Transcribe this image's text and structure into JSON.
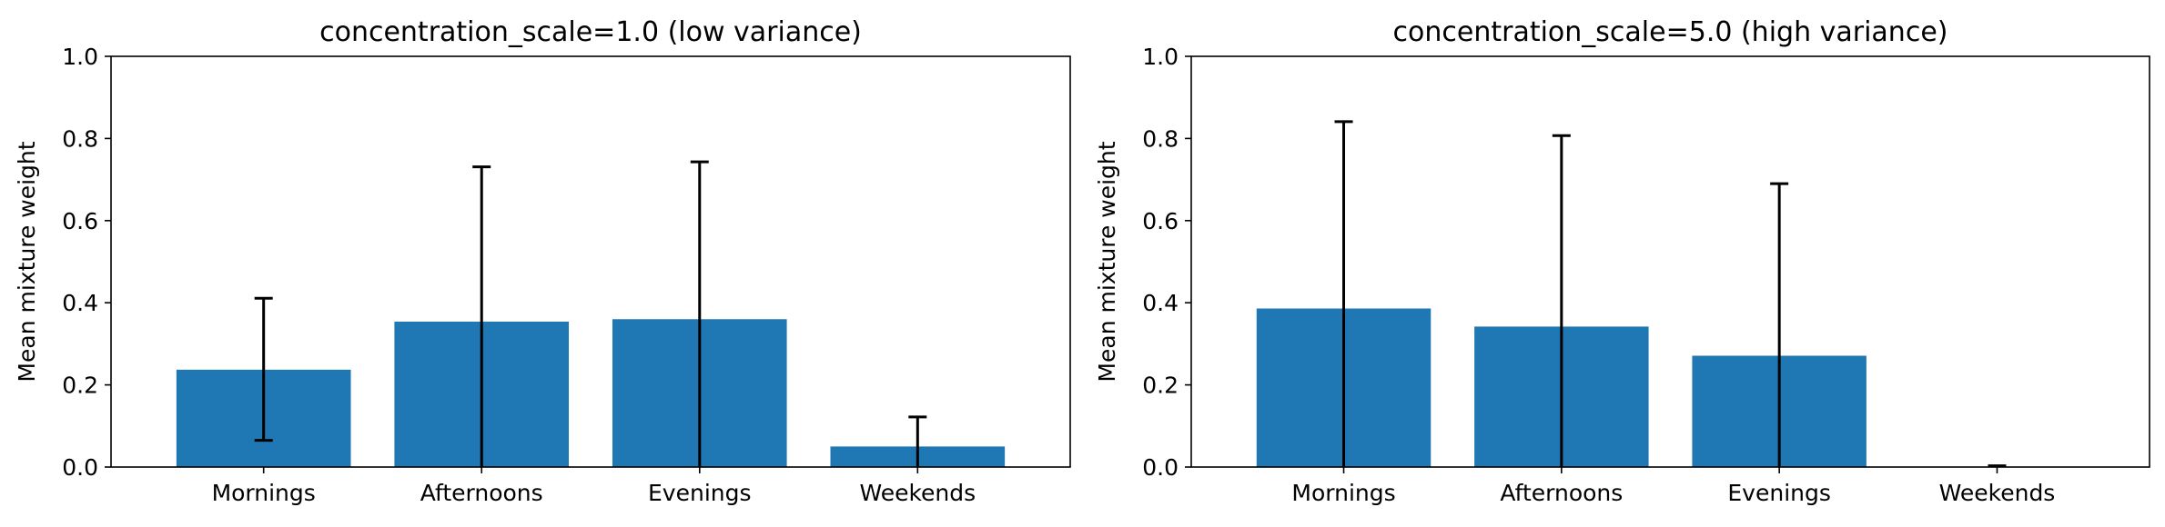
{
  "chart_data": [
    {
      "type": "bar",
      "title": "concentration_scale=1.0 (low variance)",
      "xlabel": "",
      "ylabel": "Mean mixture weight",
      "ylim": [
        0,
        1.0
      ],
      "yticks": [
        "0.0",
        "0.2",
        "0.4",
        "0.6",
        "0.8",
        "1.0"
      ],
      "categories": [
        "Mornings",
        "Afternoons",
        "Evenings",
        "Weekends"
      ],
      "values": [
        0.237,
        0.354,
        0.36,
        0.05
      ],
      "error_low": [
        0.172,
        0.354,
        0.36,
        0.05
      ],
      "error_high": [
        0.174,
        0.377,
        0.383,
        0.072
      ],
      "bar_color": "#1f77b4",
      "error_color": "#000000",
      "grid": false
    },
    {
      "type": "bar",
      "title": "concentration_scale=5.0 (high variance)",
      "xlabel": "",
      "ylabel": "Mean mixture weight",
      "ylim": [
        0,
        1.0
      ],
      "yticks": [
        "0.0",
        "0.2",
        "0.4",
        "0.6",
        "0.8",
        "1.0"
      ],
      "categories": [
        "Mornings",
        "Afternoons",
        "Evenings",
        "Weekends"
      ],
      "values": [
        0.386,
        0.342,
        0.271,
        0.001
      ],
      "error_low": [
        0.386,
        0.342,
        0.271,
        0.001
      ],
      "error_high": [
        0.455,
        0.465,
        0.419,
        0.002
      ],
      "bar_color": "#1f77b4",
      "error_color": "#000000",
      "grid": false
    }
  ]
}
